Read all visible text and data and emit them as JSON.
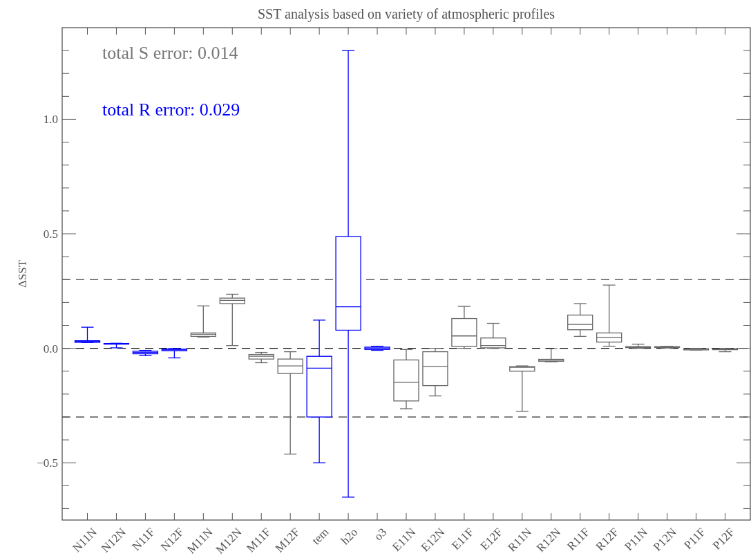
{
  "chart_data": {
    "type": "box",
    "title": "SST analysis based on variety of atmospheric profiles",
    "ylabel": "ΔSST",
    "categories": [
      "N11N",
      "N12N",
      "N11F",
      "N12F",
      "M11N",
      "M12N",
      "M11F",
      "M12F",
      "tem",
      "h2o",
      "o3",
      "E11N",
      "E12N",
      "E11F",
      "E12F",
      "R11N",
      "R12N",
      "R11F",
      "R12F",
      "P11N",
      "P12N",
      "P11F",
      "P12F"
    ],
    "boxes": [
      {
        "low": 0.025,
        "q1": 0.026,
        "median": 0.03,
        "q3": 0.033,
        "high": 0.092
      },
      {
        "low": 0.002,
        "q1": 0.018,
        "median": 0.02,
        "q3": 0.021,
        "high": 0.022
      },
      {
        "low": -0.032,
        "q1": -0.024,
        "median": -0.018,
        "q3": -0.013,
        "high": -0.009
      },
      {
        "low": -0.042,
        "q1": -0.011,
        "median": -0.007,
        "q3": -0.004,
        "high": -0.001
      },
      {
        "low": 0.049,
        "q1": 0.052,
        "median": 0.061,
        "q3": 0.067,
        "high": 0.185
      },
      {
        "low": 0.012,
        "q1": 0.195,
        "median": 0.209,
        "q3": 0.219,
        "high": 0.236
      },
      {
        "low": -0.063,
        "q1": -0.047,
        "median": -0.035,
        "q3": -0.027,
        "high": -0.018
      },
      {
        "low": -0.462,
        "q1": -0.11,
        "median": -0.077,
        "q3": -0.047,
        "high": -0.015
      },
      {
        "low": -0.5,
        "q1": -0.3,
        "median": -0.087,
        "q3": -0.035,
        "high": 0.123
      },
      {
        "low": -0.65,
        "q1": 0.079,
        "median": 0.181,
        "q3": 0.488,
        "high": 1.3
      },
      {
        "low": -0.009,
        "q1": -0.005,
        "median": 0.001,
        "q3": 0.005,
        "high": 0.009
      },
      {
        "low": -0.264,
        "q1": -0.23,
        "median": -0.149,
        "q3": -0.051,
        "high": -0.005
      },
      {
        "low": -0.208,
        "q1": -0.163,
        "median": -0.079,
        "q3": -0.015,
        "high": 0.0
      },
      {
        "low": 0.0,
        "q1": 0.008,
        "median": 0.054,
        "q3": 0.13,
        "high": 0.183
      },
      {
        "low": 0.0,
        "q1": 0.002,
        "median": 0.012,
        "q3": 0.045,
        "high": 0.109
      },
      {
        "low": -0.275,
        "q1": -0.1,
        "median": -0.083,
        "q3": -0.08,
        "high": -0.077
      },
      {
        "low": -0.059,
        "q1": -0.057,
        "median": -0.052,
        "q3": -0.048,
        "high": -0.002
      },
      {
        "low": 0.052,
        "q1": 0.081,
        "median": 0.104,
        "q3": 0.145,
        "high": 0.195
      },
      {
        "low": 0.009,
        "q1": 0.027,
        "median": 0.046,
        "q3": 0.067,
        "high": 0.276
      },
      {
        "low": 0.0,
        "q1": 0.003,
        "median": 0.005,
        "q3": 0.007,
        "high": 0.018
      },
      {
        "low": 0.001,
        "q1": 0.004,
        "median": 0.005,
        "q3": 0.007,
        "high": 0.008
      },
      {
        "low": -0.008,
        "q1": -0.007,
        "median": -0.004,
        "q3": -0.002,
        "high": 0.0
      },
      {
        "low": -0.015,
        "q1": -0.006,
        "median": -0.004,
        "q3": -0.002,
        "high": -0.001
      }
    ],
    "colors": [
      "#0000ff",
      "#0000ff",
      "#0000ff",
      "#0000ff",
      "#666666",
      "#666666",
      "#666666",
      "#666666",
      "#0000ff",
      "#0000ff",
      "#0000ff",
      "#666666",
      "#666666",
      "#666666",
      "#666666",
      "#666666",
      "#666666",
      "#666666",
      "#666666",
      "#666666",
      "#666666",
      "#666666",
      "#666666"
    ],
    "ylim": [
      -0.75,
      1.4
    ],
    "yticks": [
      {
        "value": -0.7,
        "label": null
      },
      {
        "value": -0.6,
        "label": null
      },
      {
        "value": -0.5,
        "label": "−0.5"
      },
      {
        "value": -0.4,
        "label": null
      },
      {
        "value": -0.3,
        "label": null
      },
      {
        "value": -0.2,
        "label": null
      },
      {
        "value": -0.1,
        "label": null
      },
      {
        "value": 0,
        "label": "0.0"
      },
      {
        "value": 0.1,
        "label": null
      },
      {
        "value": 0.2,
        "label": null
      },
      {
        "value": 0.3,
        "label": null
      },
      {
        "value": 0.4,
        "label": null
      },
      {
        "value": 0.5,
        "label": "0.5"
      },
      {
        "value": 0.6,
        "label": null
      },
      {
        "value": 0.7,
        "label": null
      },
      {
        "value": 0.8,
        "label": null
      },
      {
        "value": 0.9,
        "label": null
      },
      {
        "value": 1.0,
        "label": "1.0"
      },
      {
        "value": 1.1,
        "label": null
      },
      {
        "value": 1.2,
        "label": null
      },
      {
        "value": 1.3,
        "label": null
      }
    ],
    "ref_lines": [
      {
        "axis": "y",
        "value": 0.3,
        "color": "#555555",
        "line_style": "dashed"
      },
      {
        "axis": "y",
        "value": 0,
        "color": "#000000",
        "line_style": "dashed"
      },
      {
        "axis": "y",
        "value": -0.3,
        "color": "#555555",
        "line_style": "dashed"
      }
    ],
    "annotations": [
      "total S error:  0.014",
      "total R error:  0.029"
    ],
    "grid": false
  }
}
